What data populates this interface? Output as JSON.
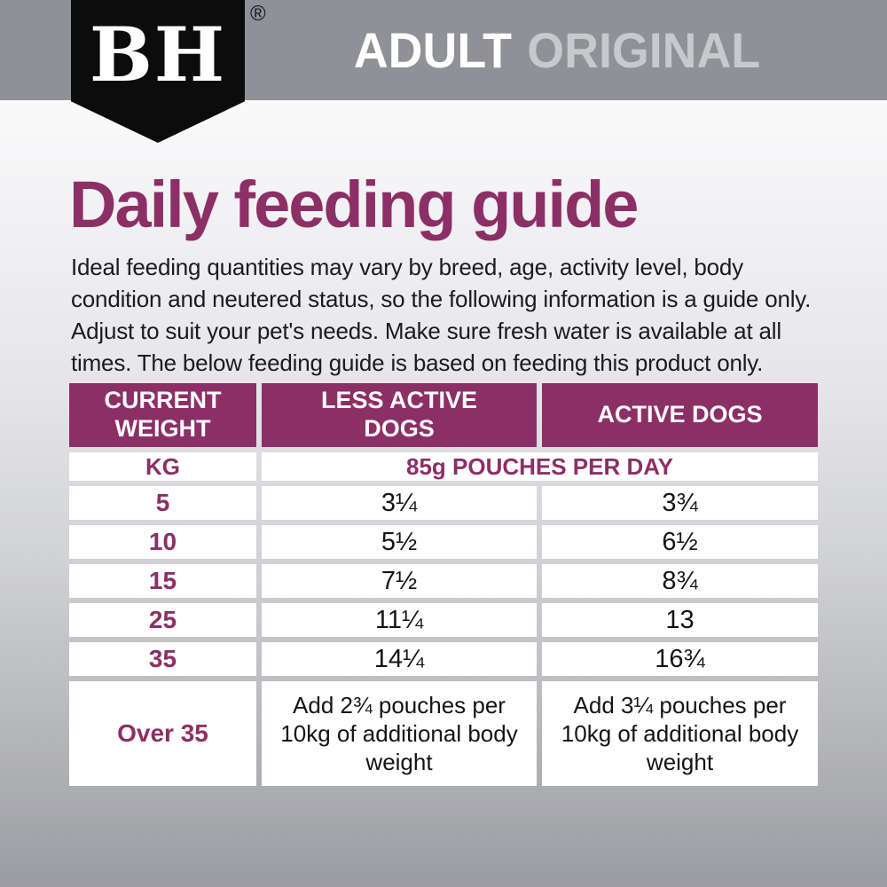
{
  "brand": {
    "monogram": "BH",
    "registered_mark": "®"
  },
  "banner": {
    "product_line": "ADULT",
    "variant": "ORIGINAL"
  },
  "page": {
    "title": "Daily feeding guide",
    "intro": "Ideal feeding quantities may vary by breed, age, activity level, body condition and neutered status, so the following information is a guide only. Adjust to suit your pet's needs. Make sure fresh water is available at all times. The below feeding guide is based on feeding this product only."
  },
  "table": {
    "columns": [
      "CURRENT WEIGHT",
      "LESS ACTIVE DOGS",
      "ACTIVE DOGS"
    ],
    "unit_row": {
      "unit": "KG",
      "serving": "85g POUCHES PER DAY"
    },
    "rows": [
      {
        "weight": "5",
        "less_active": "3¼",
        "active": "3¾"
      },
      {
        "weight": "10",
        "less_active": "5½",
        "active": "6½"
      },
      {
        "weight": "15",
        "less_active": "7½",
        "active": "8¾"
      },
      {
        "weight": "25",
        "less_active": "11¼",
        "active": "13"
      },
      {
        "weight": "35",
        "less_active": "14¼",
        "active": "16¾"
      },
      {
        "weight": "Over 35",
        "less_active": "Add 2¾ pouches per 10kg of additional body weight",
        "active": "Add 3¼ pouches per 10kg of additional body weight"
      }
    ]
  },
  "colors": {
    "accent_purple": "#8C2F66",
    "banner_gray": "#8F9196",
    "variant_text_gray": "#C7C9CD",
    "logo_black": "#0C0C0C"
  }
}
